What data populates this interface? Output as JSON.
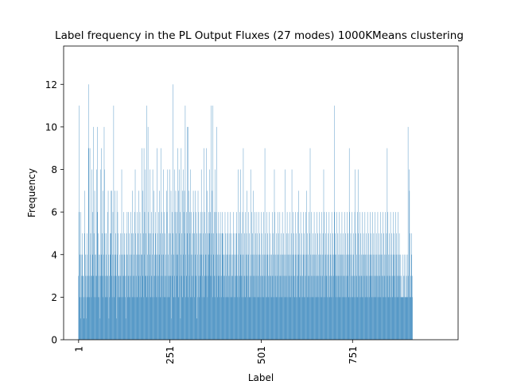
{
  "chart_data": {
    "type": "bar",
    "title": "Label frequency in the PL Output Fluxes (27 modes) 1000KMeans clustering",
    "xlabel": "Label",
    "ylabel": "Frequency",
    "xlim": [
      -40,
      1040
    ],
    "ylim": [
      0,
      13.8
    ],
    "xticks": [
      1,
      251,
      501,
      751
    ],
    "xtick_labels": [
      "1",
      "251",
      "501",
      "751"
    ],
    "yticks": [
      0,
      2,
      4,
      6,
      8,
      10,
      12
    ],
    "ytick_labels": [
      "0",
      "2",
      "4",
      "6",
      "8",
      "10",
      "12"
    ],
    "bar_color": "#1f77b4",
    "n_labels": 1000,
    "values": [
      3,
      11,
      6,
      4,
      2,
      1,
      6,
      4,
      3,
      2,
      4,
      5,
      3,
      3,
      1,
      2,
      5,
      7,
      3,
      4,
      2,
      1,
      3,
      5,
      4,
      2,
      3,
      12,
      9,
      2,
      3,
      9,
      4,
      5,
      3,
      2,
      8,
      3,
      4,
      6,
      10,
      3,
      5,
      2,
      7,
      4,
      3,
      2,
      4,
      8,
      3,
      6,
      10,
      5,
      2,
      4,
      3,
      2,
      4,
      1,
      3,
      8,
      9,
      4,
      5,
      3,
      7,
      2,
      4,
      3,
      10,
      8,
      5,
      3,
      2,
      4,
      5,
      3,
      2,
      6,
      3,
      7,
      4,
      1,
      3,
      2,
      5,
      4,
      7,
      5,
      3,
      7,
      2,
      4,
      6,
      3,
      11,
      4,
      2,
      3,
      7,
      5,
      4,
      3,
      1,
      7,
      4,
      6,
      5,
      2,
      3,
      3,
      2,
      4,
      5,
      3,
      2,
      4,
      8,
      5,
      3,
      4,
      2,
      3,
      6,
      4,
      5,
      2,
      3,
      1,
      4,
      5,
      3,
      6,
      2,
      4,
      3,
      6,
      2,
      5,
      3,
      4,
      2,
      6,
      3,
      5,
      4,
      2,
      7,
      3,
      5,
      4,
      2,
      6,
      3,
      8,
      5,
      2,
      4,
      3,
      6,
      2,
      5,
      4,
      3,
      7,
      2,
      4,
      6,
      3,
      5,
      4,
      2,
      9,
      4,
      3,
      7,
      5,
      2,
      9,
      4,
      6,
      3,
      8,
      5,
      3,
      2,
      11,
      4,
      3,
      10,
      6,
      2,
      5,
      3,
      4,
      8,
      2,
      5,
      3,
      6,
      4,
      2,
      8,
      5,
      3,
      7,
      2,
      4,
      3,
      5,
      6,
      4,
      2,
      3,
      9,
      5,
      4,
      2,
      6,
      3,
      7,
      4,
      2,
      5,
      9,
      3,
      6,
      4,
      2,
      5,
      3,
      8,
      4,
      2,
      6,
      3,
      5,
      2,
      4,
      3,
      7,
      6,
      2,
      8,
      3,
      4,
      5,
      2,
      3,
      8,
      5,
      3,
      7,
      1,
      4,
      6,
      3,
      12,
      5,
      2,
      4,
      8,
      3,
      6,
      2,
      7,
      5,
      4,
      3,
      6,
      9,
      4,
      2,
      7,
      5,
      8,
      3,
      6,
      1,
      4,
      9,
      3,
      5,
      7,
      2,
      8,
      4,
      6,
      3,
      7,
      5,
      11,
      4,
      2,
      6,
      3,
      10,
      5,
      2,
      10,
      4,
      7,
      3,
      6,
      5,
      2,
      8,
      4,
      6,
      3,
      2,
      5,
      4,
      7,
      6,
      3,
      5,
      2,
      4,
      7,
      3,
      6,
      1,
      5,
      4,
      2,
      7,
      3,
      6,
      5,
      2,
      4,
      3,
      5,
      6,
      8,
      4,
      2,
      3,
      6,
      5,
      4,
      9,
      2,
      6,
      3,
      4,
      5,
      3,
      9,
      4,
      7,
      2,
      5,
      3,
      6,
      4,
      8,
      5,
      3,
      6,
      4,
      11,
      5,
      3,
      7,
      2,
      11,
      4,
      5,
      3,
      6,
      2,
      8,
      4,
      6,
      3,
      10,
      5,
      2,
      4,
      3,
      6,
      5,
      4,
      2,
      3,
      6,
      4,
      5,
      2,
      3,
      5,
      6,
      4,
      5,
      3,
      2,
      4,
      3,
      6,
      5,
      2,
      4,
      3,
      5,
      2,
      4,
      6,
      3,
      2,
      5,
      4,
      3,
      6,
      2,
      4,
      5,
      3,
      2,
      4,
      3,
      5,
      6,
      2,
      4,
      3,
      5,
      2,
      3,
      4,
      6,
      5,
      3,
      2,
      4,
      8,
      3,
      5,
      2,
      6,
      3,
      4,
      8,
      3,
      5,
      2,
      4,
      6,
      3,
      9,
      4,
      2,
      5,
      3,
      6,
      2,
      4,
      3,
      5,
      7,
      4,
      2,
      3,
      6,
      4,
      2,
      5,
      3,
      2,
      8,
      4,
      3,
      6,
      2,
      5,
      4,
      3,
      7,
      2,
      4,
      6,
      3,
      5,
      2,
      4,
      3,
      6,
      5,
      2,
      4,
      3,
      2,
      6,
      4,
      5,
      3,
      2,
      4,
      6,
      3,
      2,
      5,
      4,
      3,
      6,
      2,
      4,
      3,
      9,
      5,
      2,
      4,
      3,
      6,
      2,
      4,
      5,
      3,
      2,
      4,
      6,
      3,
      2,
      5,
      4,
      3,
      2,
      4,
      6,
      3,
      5,
      2,
      4,
      3,
      8,
      6,
      2,
      4,
      3,
      5,
      2,
      4,
      3,
      6,
      2,
      5,
      4,
      3,
      2,
      6,
      4,
      3,
      5,
      2,
      4,
      3,
      6,
      2,
      4,
      5,
      3,
      2,
      4,
      3,
      8,
      2,
      4,
      5,
      3,
      6,
      2,
      4,
      3,
      5,
      2,
      4,
      6,
      3,
      2,
      4,
      5,
      3,
      8,
      4,
      2,
      6,
      3,
      4,
      5,
      2,
      3,
      4,
      6,
      2,
      5,
      3,
      4,
      2,
      6,
      3,
      7,
      4,
      2,
      5,
      3,
      4,
      6,
      2,
      3,
      5,
      4,
      2,
      3,
      6,
      4,
      2,
      5,
      3,
      4,
      2,
      6,
      3,
      7,
      4,
      2,
      5,
      3,
      4,
      6,
      2,
      3,
      5,
      9,
      4,
      2,
      3,
      6,
      4,
      2,
      5,
      3,
      4,
      2,
      6,
      3,
      4,
      5,
      2,
      3,
      4,
      6,
      2,
      3,
      5,
      4,
      2,
      3,
      6,
      4,
      2,
      5,
      3,
      4,
      2,
      6,
      3,
      4,
      5,
      2,
      8,
      4,
      6,
      3,
      2,
      5,
      4,
      3,
      6,
      2,
      4,
      3,
      5,
      2,
      4,
      6,
      3,
      2,
      4,
      5,
      3,
      2,
      6,
      4,
      3,
      5,
      2,
      4,
      3,
      6,
      11,
      4,
      5,
      3,
      2,
      4,
      6,
      3,
      2,
      5,
      4,
      3,
      2,
      6,
      4,
      3,
      5,
      2,
      4,
      3,
      6,
      2,
      4,
      5,
      3,
      2,
      4,
      6,
      3,
      2,
      5,
      4,
      3,
      2,
      6,
      4,
      3,
      5,
      2,
      4,
      9,
      6,
      2,
      4,
      5,
      3,
      2,
      4,
      6,
      3,
      2,
      5,
      4,
      3,
      2,
      6,
      8,
      3,
      5,
      2,
      4,
      3,
      6,
      2,
      8,
      5,
      3,
      2,
      4,
      6,
      3,
      2,
      5,
      4,
      3,
      2,
      6,
      4,
      3,
      5,
      2,
      4,
      3,
      6,
      2,
      4,
      5,
      3,
      2,
      4,
      6,
      3,
      2,
      5,
      4,
      3,
      2,
      6,
      4,
      3,
      5,
      2,
      4,
      3,
      6,
      2,
      4,
      5,
      3,
      2,
      4,
      6,
      3,
      2,
      5,
      4,
      3,
      2,
      6,
      4,
      3,
      5,
      2,
      4,
      3,
      6,
      2,
      4,
      5,
      3,
      2,
      4,
      6,
      3,
      2,
      5,
      4,
      3,
      2,
      6,
      4,
      3,
      5,
      2,
      9,
      3,
      6,
      2,
      4,
      5,
      3,
      2,
      4,
      6,
      3,
      2,
      5,
      4,
      3,
      2,
      6,
      4,
      3,
      5,
      2,
      4,
      3,
      6,
      2,
      4,
      5,
      3,
      2,
      4,
      6,
      3,
      2,
      5,
      4,
      3,
      2,
      4,
      3,
      2,
      2,
      2,
      4,
      2,
      2,
      3,
      2,
      4,
      3,
      2,
      2,
      2,
      4,
      3,
      2,
      2,
      4,
      10,
      3,
      2,
      8,
      7,
      5,
      2,
      3,
      2,
      5,
      4,
      3,
      2
    ]
  }
}
